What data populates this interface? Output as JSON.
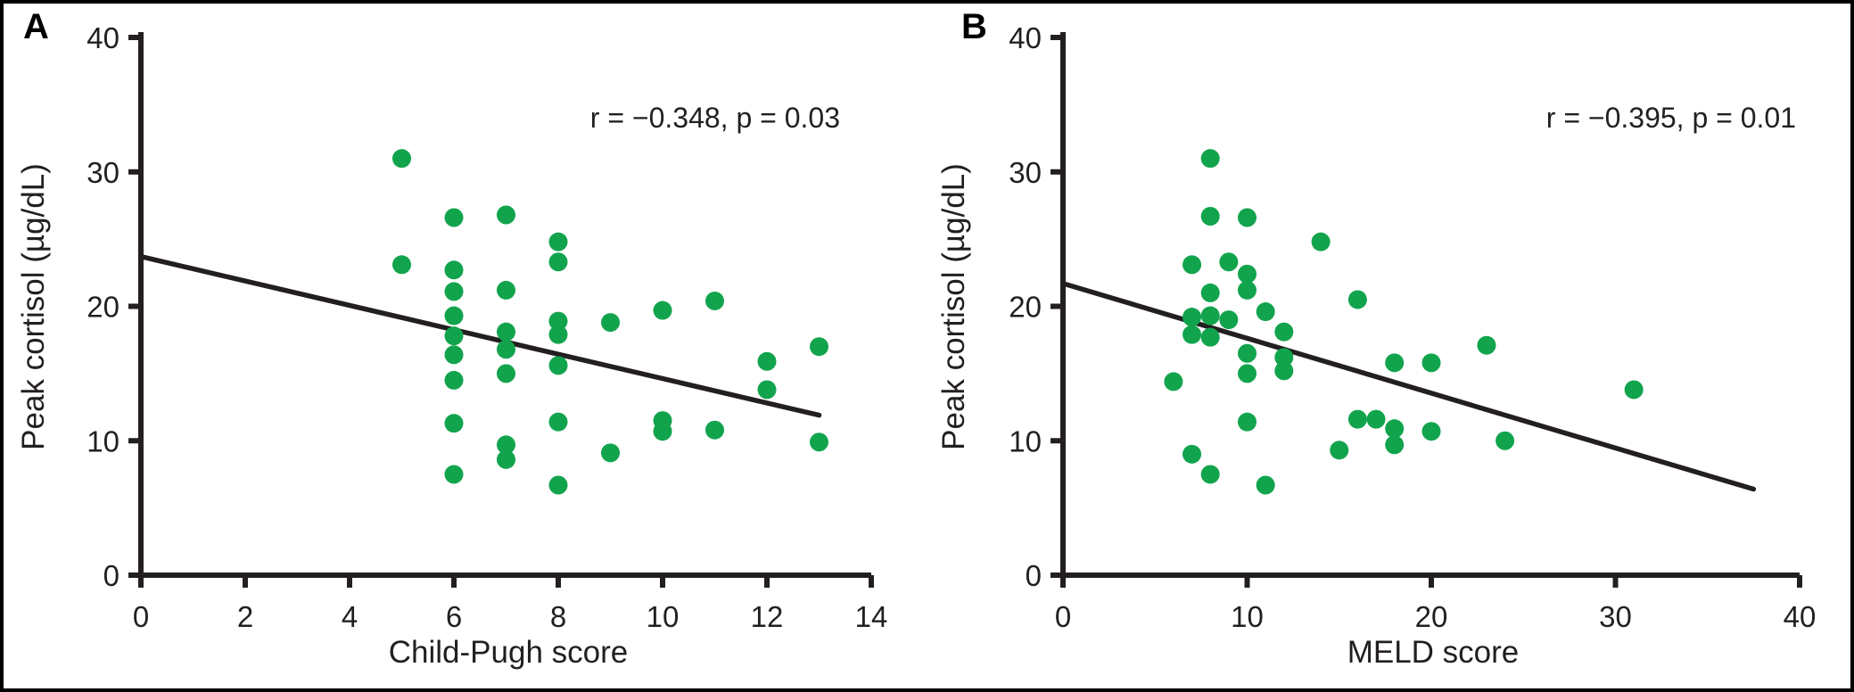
{
  "figure": {
    "background": "#ffffff",
    "frame_color": "#000000",
    "ink_color": "#231f20",
    "point_color": "#12a44d"
  },
  "chart_data": [
    {
      "panel": "A",
      "type": "scatter",
      "xlabel": "Child-Pugh score",
      "ylabel": "Peak cortisol (µg/dL)",
      "annotation": "r = −0.348, p = 0.03",
      "xlim": [
        0,
        14
      ],
      "ylim": [
        0,
        40
      ],
      "xticks": [
        0,
        2,
        4,
        6,
        8,
        10,
        12,
        14
      ],
      "yticks": [
        0,
        10,
        20,
        30,
        40
      ],
      "grid": false,
      "legend": false,
      "points": [
        [
          5,
          31
        ],
        [
          5,
          23.1
        ],
        [
          6,
          26.6
        ],
        [
          6,
          22.7
        ],
        [
          6,
          21.1
        ],
        [
          6,
          19.3
        ],
        [
          6,
          17.8
        ],
        [
          6,
          16.4
        ],
        [
          6,
          14.5
        ],
        [
          6,
          11.3
        ],
        [
          6,
          7.5
        ],
        [
          7,
          26.8
        ],
        [
          7,
          21.2
        ],
        [
          7,
          18.1
        ],
        [
          7,
          16.8
        ],
        [
          7,
          15
        ],
        [
          7,
          9.7
        ],
        [
          7,
          8.6
        ],
        [
          8,
          24.8
        ],
        [
          8,
          23.3
        ],
        [
          8,
          18.9
        ],
        [
          8,
          17.9
        ],
        [
          8,
          15.6
        ],
        [
          8,
          11.4
        ],
        [
          8,
          6.7
        ],
        [
          9,
          18.8
        ],
        [
          9,
          9.1
        ],
        [
          10,
          19.7
        ],
        [
          10,
          11.5
        ],
        [
          10,
          10.7
        ],
        [
          11,
          20.4
        ],
        [
          11,
          10.8
        ],
        [
          12,
          15.9
        ],
        [
          12,
          13.8
        ],
        [
          13,
          17
        ],
        [
          13,
          9.9
        ]
      ],
      "trendline": {
        "x1": 0,
        "y1": 23.7,
        "x2": 13,
        "y2": 11.9
      }
    },
    {
      "panel": "B",
      "type": "scatter",
      "xlabel": "MELD score",
      "ylabel": "Peak cortisol (µg/dL)",
      "annotation": "r = −0.395, p = 0.01",
      "xlim": [
        0,
        40
      ],
      "ylim": [
        0,
        40
      ],
      "xticks": [
        0,
        10,
        20,
        30,
        40
      ],
      "yticks": [
        0,
        10,
        20,
        30,
        40
      ],
      "grid": false,
      "legend": false,
      "points": [
        [
          6,
          14.4
        ],
        [
          7,
          23.1
        ],
        [
          7,
          19.2
        ],
        [
          7,
          17.9
        ],
        [
          7,
          9
        ],
        [
          8,
          31
        ],
        [
          8,
          26.7
        ],
        [
          8,
          21
        ],
        [
          8,
          19.3
        ],
        [
          8,
          17.7
        ],
        [
          8,
          7.5
        ],
        [
          9,
          23.3
        ],
        [
          9,
          19
        ],
        [
          10,
          26.6
        ],
        [
          10,
          22.4
        ],
        [
          10,
          21.2
        ],
        [
          10,
          16.5
        ],
        [
          10,
          15
        ],
        [
          10,
          11.4
        ],
        [
          11,
          19.6
        ],
        [
          11,
          6.7
        ],
        [
          12,
          18.1
        ],
        [
          12,
          16.2
        ],
        [
          12,
          15.2
        ],
        [
          14,
          24.8
        ],
        [
          15,
          9.3
        ],
        [
          16,
          20.5
        ],
        [
          16,
          11.6
        ],
        [
          17,
          11.6
        ],
        [
          18,
          15.8
        ],
        [
          18,
          10.9
        ],
        [
          18,
          9.7
        ],
        [
          20,
          15.8
        ],
        [
          20,
          10.7
        ],
        [
          23,
          17.1
        ],
        [
          24,
          10
        ],
        [
          31,
          13.8
        ]
      ],
      "trendline": {
        "x1": 0,
        "y1": 21.7,
        "x2": 37.5,
        "y2": 6.4
      }
    }
  ]
}
